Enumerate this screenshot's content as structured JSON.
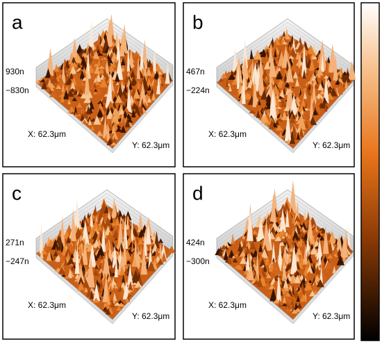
{
  "panels": [
    {
      "label": "a",
      "z_max": "930n",
      "z_min": "−830n",
      "x_size": "X: 62.3μm",
      "y_size": "Y: 62.3μm"
    },
    {
      "label": "b",
      "z_max": "467n",
      "z_min": "−224n",
      "x_size": "X: 62.3μm",
      "y_size": "Y: 62.3μm"
    },
    {
      "label": "c",
      "z_max": "271n",
      "z_min": "−247n",
      "x_size": "X: 62.3μm",
      "y_size": "Y: 62.3μm"
    },
    {
      "label": "d",
      "z_max": "424n",
      "z_min": "−300n",
      "x_size": "X: 62.3μm",
      "y_size": "Y: 62.3μm"
    }
  ]
}
